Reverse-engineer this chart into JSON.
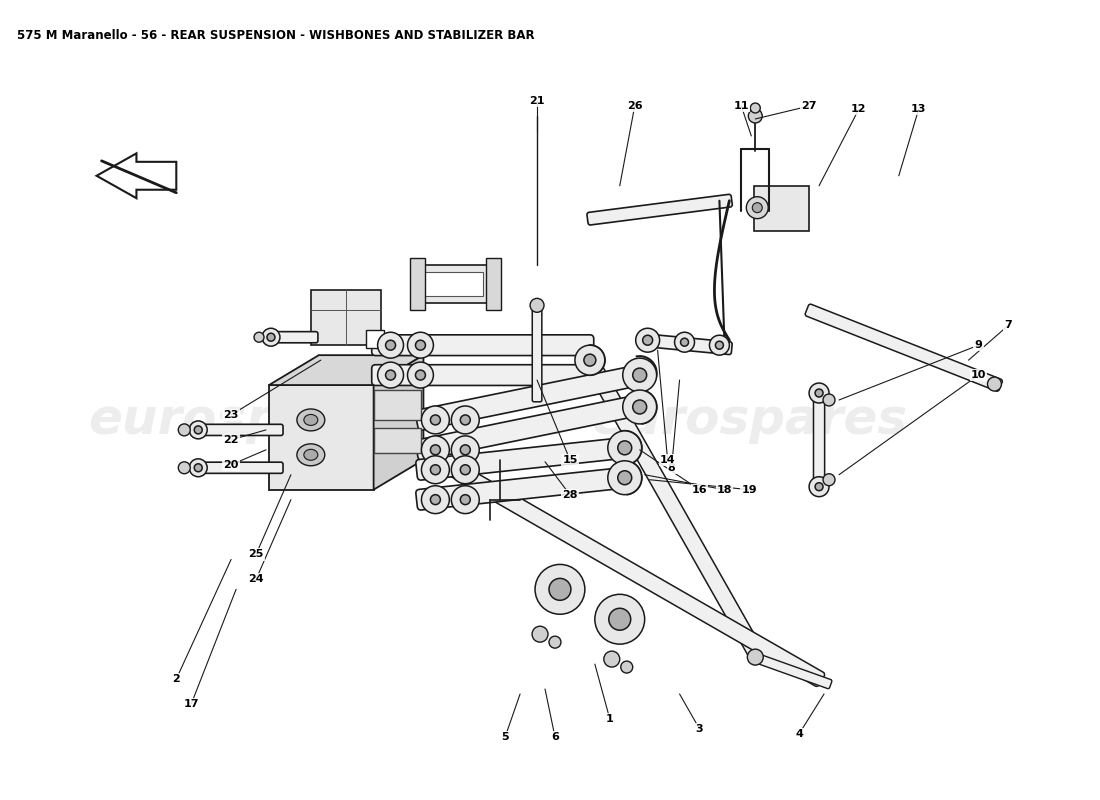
{
  "title": "575 M Maranello - 56 - REAR SUSPENSION - WISHBONES AND STABILIZER BAR",
  "title_fontsize": 8.5,
  "bg_color": "#ffffff",
  "watermark_text": "eurospares",
  "watermark_color": "#c8c8c8",
  "watermark_alpha": 0.32,
  "line_color": "#1a1a1a",
  "figsize": [
    11.0,
    8.0
  ],
  "dpi": 100,
  "tube_fill": "#f0f0f0",
  "tube_edge": "#1a1a1a",
  "block_fill": "#e8e8e8",
  "block_edge": "#1a1a1a"
}
